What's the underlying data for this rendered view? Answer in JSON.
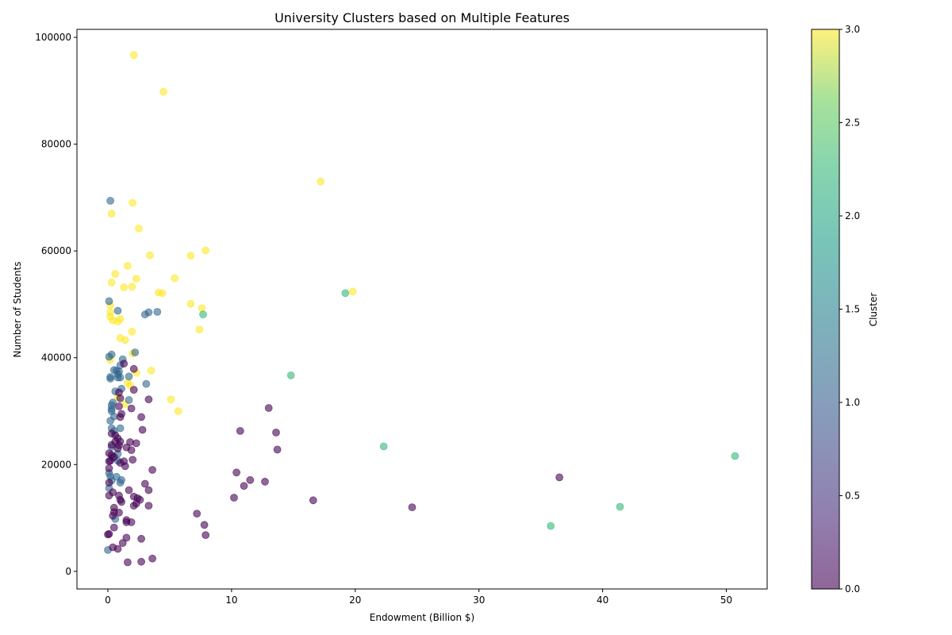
{
  "chart_data": {
    "type": "scatter",
    "title": "University Clusters based on Multiple Features",
    "xlabel": "Endowment (Billion $)",
    "ylabel": "Number of Students",
    "xlim": [
      -2.5,
      53.3
    ],
    "ylim": [
      -3300,
      101500
    ],
    "xticks": [
      0,
      10,
      20,
      30,
      40,
      50
    ],
    "yticks": [
      0,
      20000,
      40000,
      60000,
      80000,
      100000
    ],
    "xtick_labels": [
      "0",
      "10",
      "20",
      "30",
      "40",
      "50"
    ],
    "ytick_labels": [
      "0",
      "20000",
      "40000",
      "60000",
      "80000",
      "100000"
    ],
    "colorbar": {
      "label": "Cluster",
      "range": [
        0.0,
        3.0
      ],
      "ticks": [
        0.0,
        0.5,
        1.0,
        1.5,
        2.0,
        2.5,
        3.0
      ],
      "tick_labels": [
        "0.0",
        "0.5",
        "1.0",
        "1.5",
        "2.0",
        "2.5",
        "3.0"
      ],
      "colormap": "viridis"
    },
    "cluster_colors": {
      "0": "#440154",
      "1": "#31688e",
      "2": "#35b779",
      "3": "#fde725"
    },
    "marker_alpha": 0.6,
    "points": [
      {
        "x": 2.1,
        "y": 96700,
        "cluster": 3
      },
      {
        "x": 4.5,
        "y": 89800,
        "cluster": 3
      },
      {
        "x": 17.2,
        "y": 73000,
        "cluster": 3
      },
      {
        "x": 2.0,
        "y": 69000,
        "cluster": 3
      },
      {
        "x": 0.3,
        "y": 67000,
        "cluster": 3
      },
      {
        "x": 2.5,
        "y": 64200,
        "cluster": 3
      },
      {
        "x": 7.9,
        "y": 60100,
        "cluster": 3
      },
      {
        "x": 3.4,
        "y": 59200,
        "cluster": 3
      },
      {
        "x": 6.7,
        "y": 59100,
        "cluster": 3
      },
      {
        "x": 1.6,
        "y": 57200,
        "cluster": 3
      },
      {
        "x": 0.6,
        "y": 55700,
        "cluster": 3
      },
      {
        "x": 2.3,
        "y": 54800,
        "cluster": 3
      },
      {
        "x": 5.4,
        "y": 54900,
        "cluster": 3
      },
      {
        "x": 0.3,
        "y": 54100,
        "cluster": 3
      },
      {
        "x": 1.3,
        "y": 53200,
        "cluster": 3
      },
      {
        "x": 1.95,
        "y": 53300,
        "cluster": 3
      },
      {
        "x": 4.1,
        "y": 52200,
        "cluster": 3
      },
      {
        "x": 4.4,
        "y": 52100,
        "cluster": 3
      },
      {
        "x": 19.8,
        "y": 52400,
        "cluster": 3
      },
      {
        "x": 6.7,
        "y": 50100,
        "cluster": 3
      },
      {
        "x": 0.2,
        "y": 49800,
        "cluster": 3
      },
      {
        "x": 7.6,
        "y": 49300,
        "cluster": 3
      },
      {
        "x": 0.2,
        "y": 48500,
        "cluster": 3
      },
      {
        "x": 0.2,
        "y": 47700,
        "cluster": 3
      },
      {
        "x": 1.0,
        "y": 47300,
        "cluster": 3
      },
      {
        "x": 0.4,
        "y": 47000,
        "cluster": 3
      },
      {
        "x": 0.8,
        "y": 46800,
        "cluster": 3
      },
      {
        "x": 7.4,
        "y": 45300,
        "cluster": 3
      },
      {
        "x": 1.95,
        "y": 44900,
        "cluster": 3
      },
      {
        "x": 1.0,
        "y": 43700,
        "cluster": 3
      },
      {
        "x": 1.4,
        "y": 43300,
        "cluster": 3
      },
      {
        "x": 2.0,
        "y": 40800,
        "cluster": 3
      },
      {
        "x": 0.2,
        "y": 39600,
        "cluster": 3
      },
      {
        "x": 3.5,
        "y": 37600,
        "cluster": 3
      },
      {
        "x": 2.3,
        "y": 37200,
        "cluster": 3
      },
      {
        "x": 1.6,
        "y": 35300,
        "cluster": 3
      },
      {
        "x": 1.8,
        "y": 34800,
        "cluster": 3
      },
      {
        "x": 5.1,
        "y": 32200,
        "cluster": 3
      },
      {
        "x": 1.4,
        "y": 31300,
        "cluster": 3
      },
      {
        "x": 5.7,
        "y": 30000,
        "cluster": 3
      },
      {
        "x": 0.8,
        "y": 32600,
        "cluster": 3
      },
      {
        "x": 0.2,
        "y": 69400,
        "cluster": 1
      },
      {
        "x": 0.1,
        "y": 50600,
        "cluster": 1
      },
      {
        "x": 0.8,
        "y": 48800,
        "cluster": 1
      },
      {
        "x": 3.3,
        "y": 48500,
        "cluster": 1
      },
      {
        "x": 4.0,
        "y": 48600,
        "cluster": 1
      },
      {
        "x": 3.0,
        "y": 48100,
        "cluster": 1
      },
      {
        "x": 2.2,
        "y": 41000,
        "cluster": 1
      },
      {
        "x": 0.3,
        "y": 40600,
        "cluster": 1
      },
      {
        "x": 0.1,
        "y": 40200,
        "cluster": 1
      },
      {
        "x": 1.2,
        "y": 39700,
        "cluster": 1
      },
      {
        "x": 1.0,
        "y": 38600,
        "cluster": 1
      },
      {
        "x": 0.5,
        "y": 37700,
        "cluster": 1
      },
      {
        "x": 0.7,
        "y": 37600,
        "cluster": 1
      },
      {
        "x": 0.9,
        "y": 37400,
        "cluster": 1
      },
      {
        "x": 0.8,
        "y": 36900,
        "cluster": 1
      },
      {
        "x": 1.7,
        "y": 36500,
        "cluster": 1
      },
      {
        "x": 0.2,
        "y": 36400,
        "cluster": 1
      },
      {
        "x": 0.2,
        "y": 36100,
        "cluster": 1
      },
      {
        "x": 0.8,
        "y": 36300,
        "cluster": 1
      },
      {
        "x": 1.0,
        "y": 36300,
        "cluster": 1
      },
      {
        "x": 3.1,
        "y": 35100,
        "cluster": 1
      },
      {
        "x": 1.1,
        "y": 34200,
        "cluster": 1
      },
      {
        "x": 0.6,
        "y": 33700,
        "cluster": 1
      },
      {
        "x": 1.7,
        "y": 32100,
        "cluster": 1
      },
      {
        "x": 0.4,
        "y": 31600,
        "cluster": 1
      },
      {
        "x": 0.3,
        "y": 31100,
        "cluster": 1
      },
      {
        "x": 0.3,
        "y": 30400,
        "cluster": 1
      },
      {
        "x": 0.3,
        "y": 30000,
        "cluster": 1
      },
      {
        "x": 0.5,
        "y": 29000,
        "cluster": 1
      },
      {
        "x": 0.2,
        "y": 28200,
        "cluster": 1
      },
      {
        "x": 1.0,
        "y": 26800,
        "cluster": 1
      },
      {
        "x": 0.3,
        "y": 26800,
        "cluster": 1
      },
      {
        "x": 0.5,
        "y": 26300,
        "cluster": 1
      },
      {
        "x": 0.3,
        "y": 23300,
        "cluster": 1
      },
      {
        "x": 0.8,
        "y": 22000,
        "cluster": 1
      },
      {
        "x": 0.4,
        "y": 21300,
        "cluster": 1
      },
      {
        "x": 0.8,
        "y": 20700,
        "cluster": 1
      },
      {
        "x": 0.1,
        "y": 18400,
        "cluster": 1
      },
      {
        "x": 0.2,
        "y": 17800,
        "cluster": 1
      },
      {
        "x": 0.7,
        "y": 17700,
        "cluster": 1
      },
      {
        "x": 1.1,
        "y": 17100,
        "cluster": 1
      },
      {
        "x": 0.3,
        "y": 17000,
        "cluster": 1
      },
      {
        "x": 1.0,
        "y": 16600,
        "cluster": 1
      },
      {
        "x": 0.1,
        "y": 15600,
        "cluster": 1
      },
      {
        "x": 0.6,
        "y": 9800,
        "cluster": 1
      },
      {
        "x": 0.0,
        "y": 4000,
        "cluster": 1
      },
      {
        "x": 19.2,
        "y": 52100,
        "cluster": 2
      },
      {
        "x": 7.7,
        "y": 48100,
        "cluster": 2
      },
      {
        "x": 14.8,
        "y": 36700,
        "cluster": 2
      },
      {
        "x": 22.3,
        "y": 23400,
        "cluster": 2
      },
      {
        "x": 50.7,
        "y": 21600,
        "cluster": 2
      },
      {
        "x": 41.4,
        "y": 12100,
        "cluster": 2
      },
      {
        "x": 35.8,
        "y": 8500,
        "cluster": 2
      },
      {
        "x": 1.3,
        "y": 38900,
        "cluster": 0
      },
      {
        "x": 2.1,
        "y": 37900,
        "cluster": 0
      },
      {
        "x": 2.1,
        "y": 34000,
        "cluster": 0
      },
      {
        "x": 0.9,
        "y": 33500,
        "cluster": 0
      },
      {
        "x": 1.0,
        "y": 32400,
        "cluster": 0
      },
      {
        "x": 3.3,
        "y": 32200,
        "cluster": 0
      },
      {
        "x": 13.0,
        "y": 30600,
        "cluster": 0
      },
      {
        "x": 0.9,
        "y": 30900,
        "cluster": 0
      },
      {
        "x": 1.9,
        "y": 30500,
        "cluster": 0
      },
      {
        "x": 1.1,
        "y": 29500,
        "cluster": 0
      },
      {
        "x": 1.0,
        "y": 28900,
        "cluster": 0
      },
      {
        "x": 2.7,
        "y": 28900,
        "cluster": 0
      },
      {
        "x": 2.8,
        "y": 26500,
        "cluster": 0
      },
      {
        "x": 10.7,
        "y": 26300,
        "cluster": 0
      },
      {
        "x": 13.6,
        "y": 26000,
        "cluster": 0
      },
      {
        "x": 0.3,
        "y": 25800,
        "cluster": 0
      },
      {
        "x": 0.6,
        "y": 25500,
        "cluster": 0
      },
      {
        "x": 0.8,
        "y": 24900,
        "cluster": 0
      },
      {
        "x": 0.6,
        "y": 24300,
        "cluster": 0
      },
      {
        "x": 1.0,
        "y": 24300,
        "cluster": 0
      },
      {
        "x": 1.8,
        "y": 24200,
        "cluster": 0
      },
      {
        "x": 2.3,
        "y": 24000,
        "cluster": 0
      },
      {
        "x": 0.3,
        "y": 23700,
        "cluster": 0
      },
      {
        "x": 0.9,
        "y": 23600,
        "cluster": 0
      },
      {
        "x": 1.5,
        "y": 23200,
        "cluster": 0
      },
      {
        "x": 0.8,
        "y": 23000,
        "cluster": 0
      },
      {
        "x": 13.7,
        "y": 22800,
        "cluster": 0
      },
      {
        "x": 1.9,
        "y": 22700,
        "cluster": 0
      },
      {
        "x": 0.1,
        "y": 22100,
        "cluster": 0
      },
      {
        "x": 0.3,
        "y": 21800,
        "cluster": 0
      },
      {
        "x": 0.5,
        "y": 21400,
        "cluster": 0
      },
      {
        "x": 0.2,
        "y": 20700,
        "cluster": 0
      },
      {
        "x": 0.1,
        "y": 20600,
        "cluster": 0
      },
      {
        "x": 1.3,
        "y": 20600,
        "cluster": 0
      },
      {
        "x": 1.0,
        "y": 20300,
        "cluster": 0
      },
      {
        "x": 1.4,
        "y": 19700,
        "cluster": 0
      },
      {
        "x": 2.0,
        "y": 20900,
        "cluster": 0
      },
      {
        "x": 0.1,
        "y": 19300,
        "cluster": 0
      },
      {
        "x": 3.6,
        "y": 19000,
        "cluster": 0
      },
      {
        "x": 10.4,
        "y": 18500,
        "cluster": 0
      },
      {
        "x": 36.5,
        "y": 17600,
        "cluster": 0
      },
      {
        "x": 11.5,
        "y": 17100,
        "cluster": 0
      },
      {
        "x": 12.7,
        "y": 16800,
        "cluster": 0
      },
      {
        "x": 0.1,
        "y": 16600,
        "cluster": 0
      },
      {
        "x": 3.0,
        "y": 16400,
        "cluster": 0
      },
      {
        "x": 11.0,
        "y": 16000,
        "cluster": 0
      },
      {
        "x": 1.7,
        "y": 15200,
        "cluster": 0
      },
      {
        "x": 3.3,
        "y": 15200,
        "cluster": 0
      },
      {
        "x": 0.4,
        "y": 14800,
        "cluster": 0
      },
      {
        "x": 0.1,
        "y": 14200,
        "cluster": 0
      },
      {
        "x": 0.9,
        "y": 14200,
        "cluster": 0
      },
      {
        "x": 2.1,
        "y": 14000,
        "cluster": 0
      },
      {
        "x": 2.4,
        "y": 13700,
        "cluster": 0
      },
      {
        "x": 10.2,
        "y": 13800,
        "cluster": 0
      },
      {
        "x": 1.0,
        "y": 13400,
        "cluster": 0
      },
      {
        "x": 2.6,
        "y": 13400,
        "cluster": 0
      },
      {
        "x": 16.6,
        "y": 13300,
        "cluster": 0
      },
      {
        "x": 1.1,
        "y": 13000,
        "cluster": 0
      },
      {
        "x": 2.3,
        "y": 12700,
        "cluster": 0
      },
      {
        "x": 2.1,
        "y": 12300,
        "cluster": 0
      },
      {
        "x": 3.3,
        "y": 12300,
        "cluster": 0
      },
      {
        "x": 24.6,
        "y": 12000,
        "cluster": 0
      },
      {
        "x": 0.5,
        "y": 11900,
        "cluster": 0
      },
      {
        "x": 0.5,
        "y": 11100,
        "cluster": 0
      },
      {
        "x": 0.9,
        "y": 11000,
        "cluster": 0
      },
      {
        "x": 0.4,
        "y": 10400,
        "cluster": 0
      },
      {
        "x": 7.2,
        "y": 10800,
        "cluster": 0
      },
      {
        "x": 1.5,
        "y": 9600,
        "cluster": 0
      },
      {
        "x": 1.5,
        "y": 9200,
        "cluster": 0
      },
      {
        "x": 1.9,
        "y": 9200,
        "cluster": 0
      },
      {
        "x": 7.8,
        "y": 8700,
        "cluster": 0
      },
      {
        "x": 0.5,
        "y": 8200,
        "cluster": 0
      },
      {
        "x": 0.1,
        "y": 7000,
        "cluster": 0
      },
      {
        "x": 0.0,
        "y": 6900,
        "cluster": 0
      },
      {
        "x": 7.9,
        "y": 6800,
        "cluster": 0
      },
      {
        "x": 1.5,
        "y": 6300,
        "cluster": 0
      },
      {
        "x": 2.7,
        "y": 6100,
        "cluster": 0
      },
      {
        "x": 1.2,
        "y": 5300,
        "cluster": 0
      },
      {
        "x": 0.4,
        "y": 4500,
        "cluster": 0
      },
      {
        "x": 0.8,
        "y": 4200,
        "cluster": 0
      },
      {
        "x": 3.6,
        "y": 2400,
        "cluster": 0
      },
      {
        "x": 1.6,
        "y": 1700,
        "cluster": 0
      },
      {
        "x": 2.7,
        "y": 1800,
        "cluster": 0
      }
    ]
  }
}
